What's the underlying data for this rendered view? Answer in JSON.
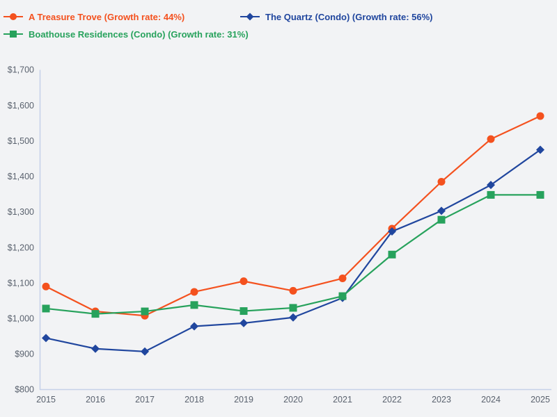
{
  "page": {
    "background": "#f2f3f5"
  },
  "legend": {
    "position": "top-left",
    "items": [
      {
        "label": "A Treasure Trove (Growth rate: 44%)",
        "marker": "circle",
        "color": "#f4511e",
        "row": 0,
        "col": 0
      },
      {
        "label": "The Quartz (Condo) (Growth rate: 56%)",
        "marker": "diamond",
        "color": "#20469e",
        "row": 0,
        "col": 1
      },
      {
        "label": "Boathouse Residences (Condo) (Growth rate: 31%)",
        "marker": "square",
        "color": "#27a25c",
        "row": 1,
        "col": 0
      }
    ]
  },
  "chart_data": {
    "type": "line",
    "title": "",
    "xlabel": "",
    "ylabel": "",
    "x": [
      2015,
      2016,
      2017,
      2018,
      2019,
      2020,
      2021,
      2022,
      2023,
      2024,
      2025
    ],
    "xtick_labels": [
      "2015",
      "2016",
      "2017",
      "2018",
      "2019",
      "2020",
      "2021",
      "2022",
      "2023",
      "2024",
      "2025"
    ],
    "ylim": [
      800,
      1700
    ],
    "ytick_step": 100,
    "ytick_labels": [
      "$800",
      "$900",
      "$1,000",
      "$1,100",
      "$1,200",
      "$1,300",
      "$1,400",
      "$1,500",
      "$1,600",
      "$1,700"
    ],
    "grid": false,
    "legend_position": "top-left",
    "axis_color": "#c5d1e8",
    "tick_label_color": "#5a626e",
    "series": [
      {
        "name": "A Treasure Trove",
        "growth_rate": "44%",
        "color": "#f4511e",
        "marker": "circle",
        "values": [
          1090,
          1020,
          1008,
          1075,
          1105,
          1078,
          1113,
          1253,
          1385,
          1505,
          1570
        ]
      },
      {
        "name": "The Quartz (Condo)",
        "growth_rate": "56%",
        "color": "#20469e",
        "marker": "diamond",
        "values": [
          945,
          915,
          907,
          978,
          987,
          1003,
          1058,
          1245,
          1303,
          1376,
          1475
        ]
      },
      {
        "name": "Boathouse Residences (Condo)",
        "growth_rate": "31%",
        "color": "#27a25c",
        "marker": "square",
        "values": [
          1028,
          1013,
          1020,
          1038,
          1021,
          1030,
          1063,
          1180,
          1278,
          1348,
          1348
        ]
      }
    ]
  }
}
